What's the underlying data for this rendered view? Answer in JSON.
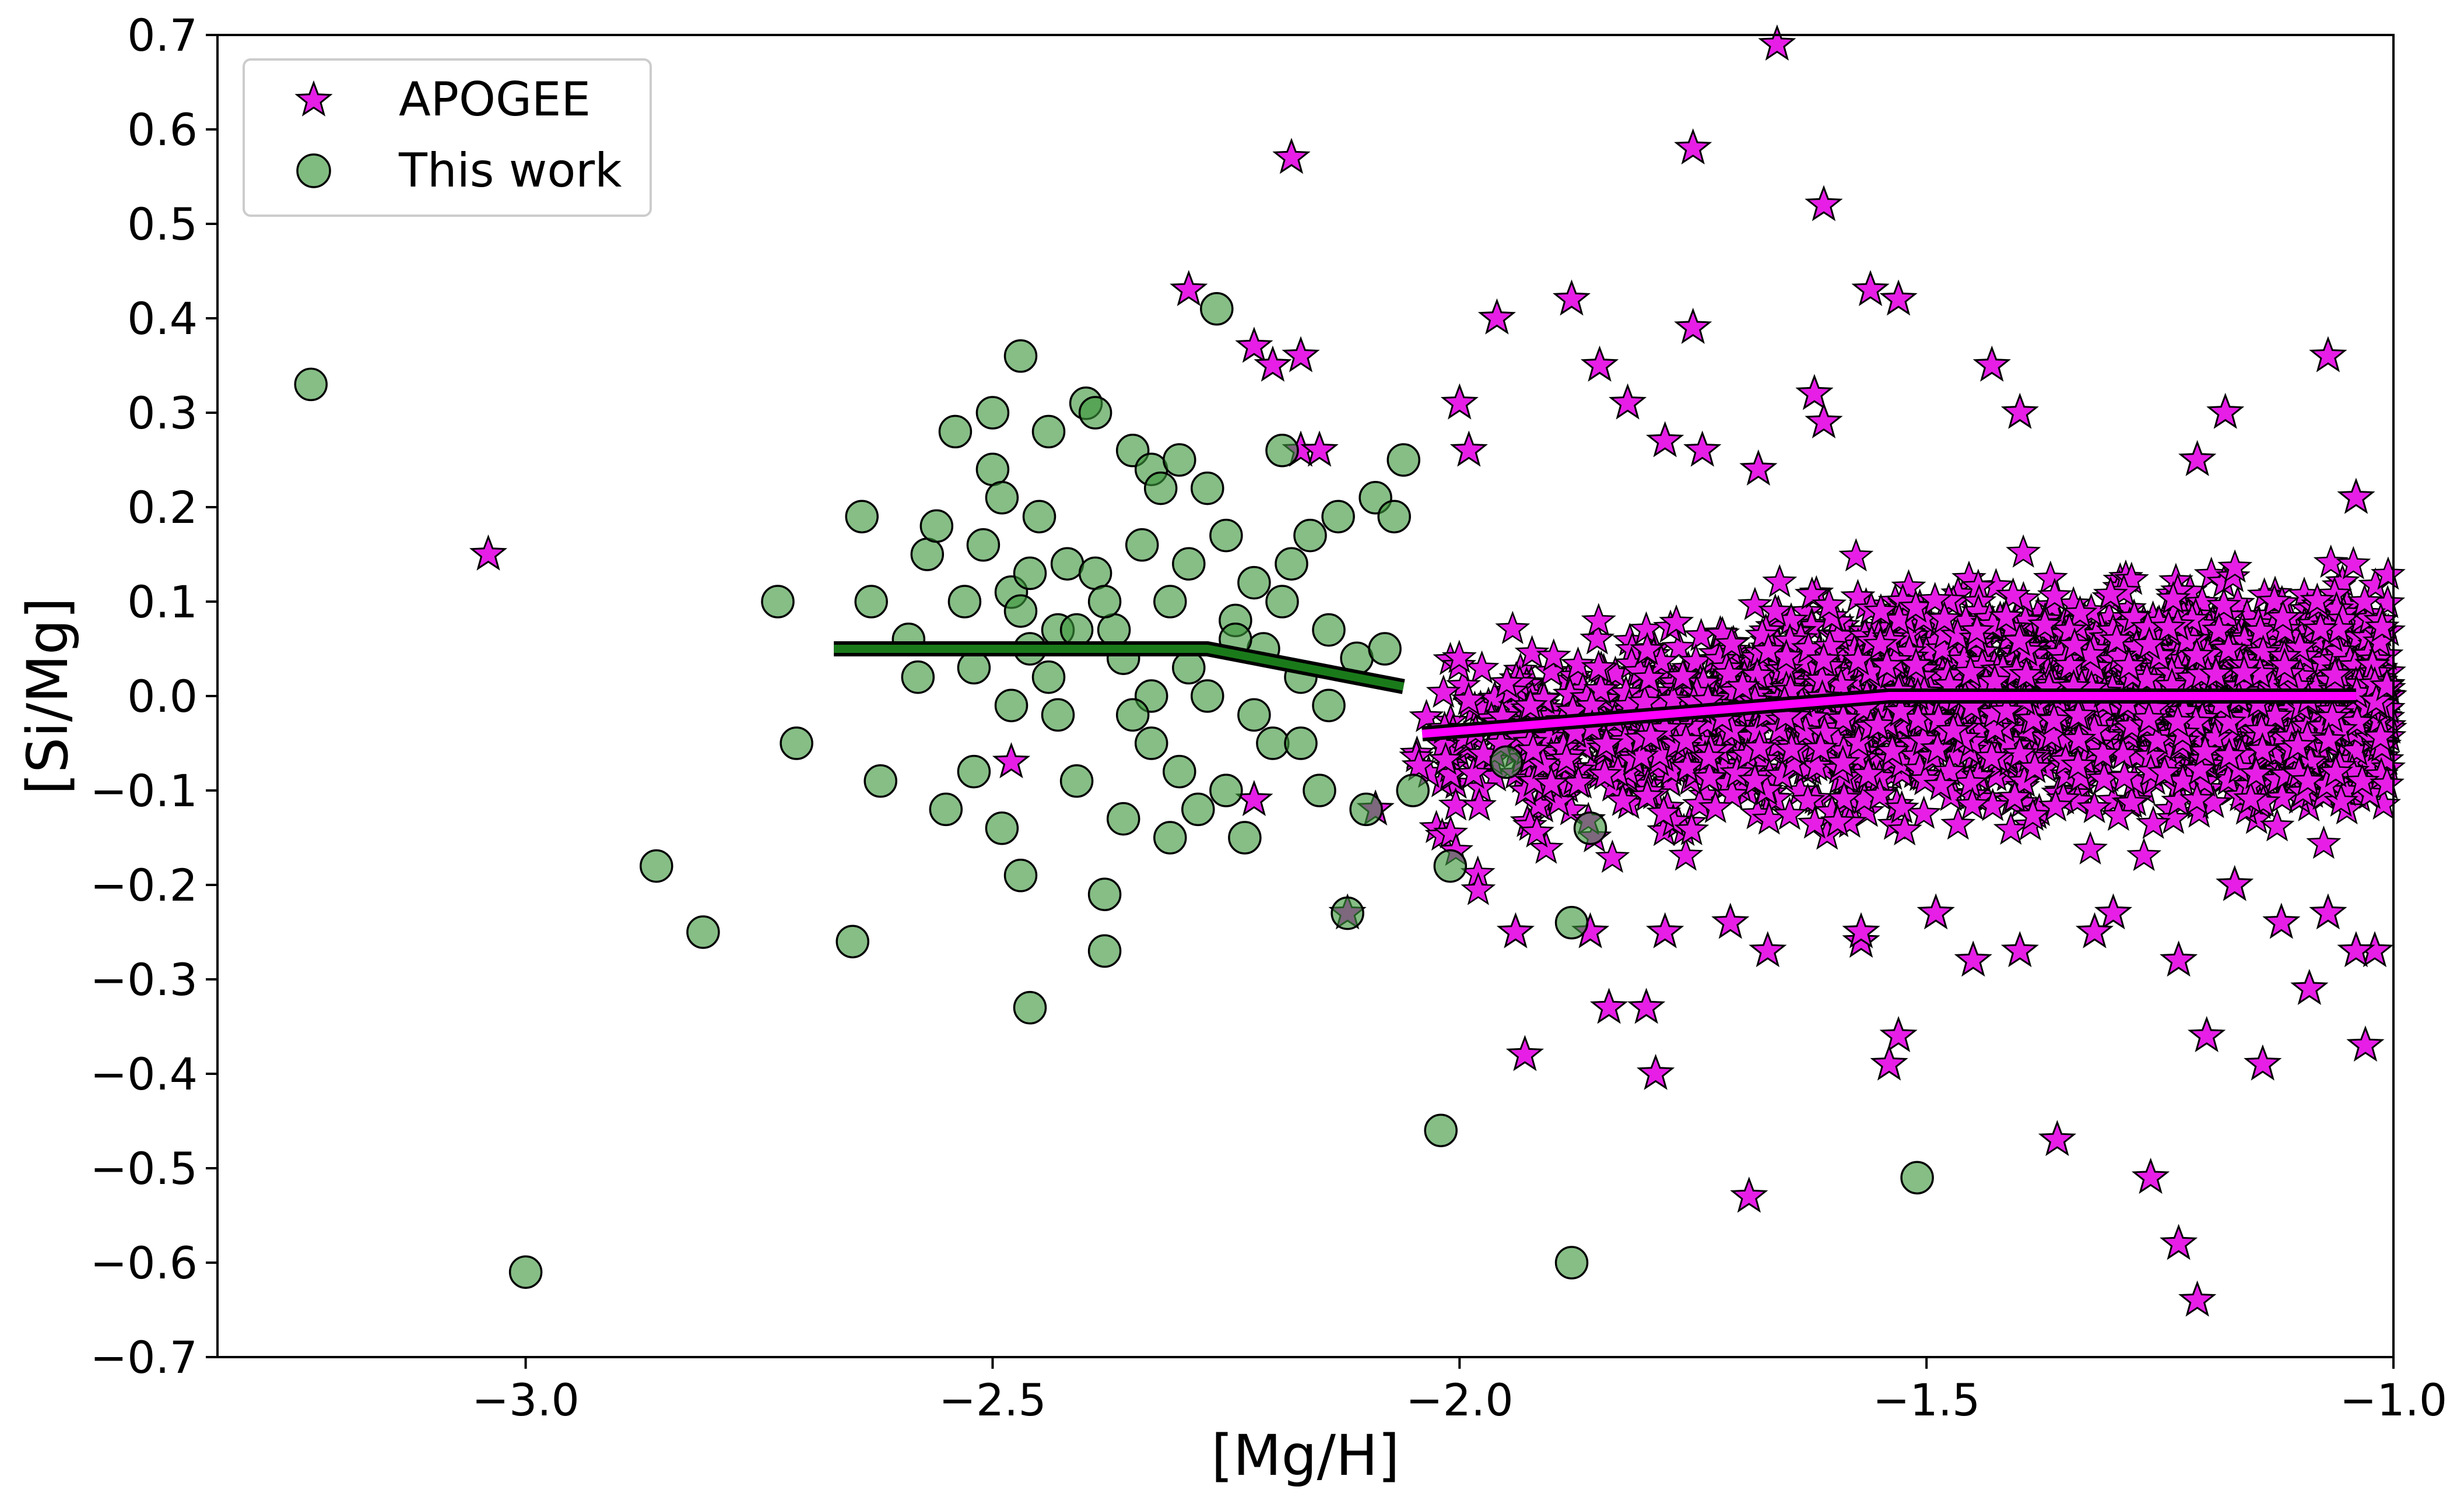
{
  "chart_data": {
    "type": "scatter",
    "xlabel": "[Mg/H]",
    "ylabel": "[Si/Mg]",
    "xlim": [
      -3.33,
      -1.0
    ],
    "ylim": [
      -0.7,
      0.7
    ],
    "xticks": [
      -3.0,
      -2.5,
      -2.0,
      -1.5,
      -1.0
    ],
    "xtick_labels": [
      "−3.0",
      "−2.5",
      "−2.0",
      "−1.5",
      "−1.0"
    ],
    "yticks": [
      0.7,
      0.6,
      0.5,
      0.4,
      0.3,
      0.2,
      0.1,
      0.0,
      -0.1,
      -0.2,
      -0.3,
      -0.4,
      -0.5,
      -0.6,
      -0.7
    ],
    "ytick_labels": [
      "0.7",
      "0.6",
      "0.5",
      "0.4",
      "0.3",
      "0.2",
      "0.1",
      "0.0",
      "−0.1",
      "−0.2",
      "−0.3",
      "−0.4",
      "−0.5",
      "−0.6",
      "−0.7"
    ],
    "grid": false,
    "legend": {
      "position": "top-left",
      "entries": [
        "APOGEE",
        "This work"
      ]
    },
    "colors": {
      "apogee": "#e61ee6",
      "this_work": "#3c963c",
      "this_work_line": "#1a7a1a",
      "apogee_line": "#ff00ff",
      "outline": "#000000"
    },
    "series": [
      {
        "name": "APOGEE",
        "marker": "star",
        "points": [
          [
            -3.04,
            0.15
          ],
          [
            -2.29,
            0.43
          ],
          [
            -2.18,
            0.57
          ],
          [
            -2.22,
            0.37
          ],
          [
            -2.2,
            0.35
          ],
          [
            -2.17,
            0.36
          ],
          [
            -2.17,
            0.26
          ],
          [
            -2.15,
            0.26
          ],
          [
            -2.48,
            -0.07
          ],
          [
            -2.22,
            -0.11
          ],
          [
            -2.12,
            -0.23
          ],
          [
            -2.09,
            -0.12
          ],
          [
            -1.66,
            0.69
          ],
          [
            -1.75,
            0.58
          ],
          [
            -1.61,
            0.52
          ],
          [
            -1.56,
            0.43
          ],
          [
            -1.53,
            0.42
          ],
          [
            -1.75,
            0.39
          ],
          [
            -1.96,
            0.4
          ],
          [
            -1.88,
            0.42
          ],
          [
            -2.0,
            0.31
          ],
          [
            -1.99,
            0.26
          ],
          [
            -1.82,
            0.31
          ],
          [
            -1.85,
            0.35
          ],
          [
            -1.62,
            0.32
          ],
          [
            -1.61,
            0.29
          ],
          [
            -1.43,
            0.35
          ],
          [
            -1.4,
            0.3
          ],
          [
            -1.07,
            0.36
          ],
          [
            -1.18,
            0.3
          ],
          [
            -1.21,
            0.25
          ],
          [
            -1.04,
            0.21
          ],
          [
            -1.78,
            0.27
          ],
          [
            -1.74,
            0.26
          ],
          [
            -1.68,
            0.24
          ],
          [
            -1.93,
            -0.38
          ],
          [
            -1.84,
            -0.33
          ],
          [
            -1.8,
            -0.33
          ],
          [
            -1.79,
            -0.4
          ],
          [
            -1.69,
            -0.53
          ],
          [
            -1.53,
            -0.36
          ],
          [
            -1.54,
            -0.39
          ],
          [
            -1.36,
            -0.47
          ],
          [
            -1.26,
            -0.51
          ],
          [
            -1.23,
            -0.58
          ],
          [
            -1.21,
            -0.64
          ],
          [
            -1.2,
            -0.36
          ],
          [
            -1.14,
            -0.39
          ],
          [
            -1.09,
            -0.31
          ],
          [
            -1.03,
            -0.37
          ],
          [
            -1.02,
            -0.27
          ],
          [
            -1.0,
            -0.34
          ],
          [
            -1.45,
            -0.28
          ],
          [
            -1.4,
            -0.27
          ],
          [
            -1.57,
            -0.26
          ],
          [
            -1.57,
            -0.25
          ],
          [
            -1.67,
            -0.27
          ],
          [
            -1.71,
            -0.24
          ],
          [
            -1.94,
            -0.25
          ],
          [
            -1.86,
            -0.25
          ],
          [
            -1.78,
            -0.25
          ],
          [
            -1.49,
            -0.23
          ],
          [
            -1.3,
            -0.23
          ],
          [
            -1.32,
            -0.25
          ],
          [
            -1.23,
            -0.28
          ],
          [
            -1.17,
            -0.2
          ],
          [
            -1.12,
            -0.24
          ],
          [
            -1.07,
            -0.23
          ],
          [
            -1.04,
            -0.27
          ]
        ]
      },
      {
        "name": "This work",
        "marker": "circle",
        "points": [
          [
            -3.23,
            0.33
          ],
          [
            -3.0,
            -0.61
          ],
          [
            -2.86,
            -0.18
          ],
          [
            -2.81,
            -0.25
          ],
          [
            -2.73,
            0.1
          ],
          [
            -2.71,
            -0.05
          ],
          [
            -2.65,
            -0.26
          ],
          [
            -2.64,
            0.19
          ],
          [
            -2.63,
            0.1
          ],
          [
            -2.62,
            -0.09
          ],
          [
            -2.59,
            0.06
          ],
          [
            -2.58,
            0.02
          ],
          [
            -2.57,
            0.15
          ],
          [
            -2.56,
            0.18
          ],
          [
            -2.55,
            -0.12
          ],
          [
            -2.54,
            0.28
          ],
          [
            -2.53,
            0.1
          ],
          [
            -2.52,
            -0.08
          ],
          [
            -2.51,
            0.16
          ],
          [
            -2.5,
            0.3
          ],
          [
            -2.5,
            0.24
          ],
          [
            -2.49,
            0.21
          ],
          [
            -2.49,
            -0.14
          ],
          [
            -2.48,
            0.11
          ],
          [
            -2.48,
            -0.01
          ],
          [
            -2.47,
            0.36
          ],
          [
            -2.47,
            -0.19
          ],
          [
            -2.46,
            0.13
          ],
          [
            -2.46,
            -0.33
          ],
          [
            -2.45,
            0.19
          ],
          [
            -2.44,
            0.28
          ],
          [
            -2.43,
            0.07
          ],
          [
            -2.42,
            0.14
          ],
          [
            -2.41,
            -0.09
          ],
          [
            -2.4,
            0.31
          ],
          [
            -2.39,
            0.3
          ],
          [
            -2.39,
            0.13
          ],
          [
            -2.38,
            -0.27
          ],
          [
            -2.38,
            -0.21
          ],
          [
            -2.37,
            0.07
          ],
          [
            -2.36,
            -0.13
          ],
          [
            -2.35,
            0.26
          ],
          [
            -2.34,
            0.16
          ],
          [
            -2.33,
            0.24
          ],
          [
            -2.33,
            -0.05
          ],
          [
            -2.32,
            0.22
          ],
          [
            -2.31,
            -0.15
          ],
          [
            -2.3,
            0.25
          ],
          [
            -2.29,
            0.14
          ],
          [
            -2.29,
            0.03
          ],
          [
            -2.28,
            -0.12
          ],
          [
            -2.27,
            0.22
          ],
          [
            -2.26,
            0.41
          ],
          [
            -2.25,
            0.17
          ],
          [
            -2.25,
            -0.1
          ],
          [
            -2.24,
            0.08
          ],
          [
            -2.23,
            -0.15
          ],
          [
            -2.22,
            0.12
          ],
          [
            -2.21,
            0.05
          ],
          [
            -2.2,
            -0.05
          ],
          [
            -2.19,
            0.26
          ],
          [
            -2.18,
            0.14
          ],
          [
            -2.17,
            0.02
          ],
          [
            -2.16,
            0.17
          ],
          [
            -2.15,
            -0.1
          ],
          [
            -2.14,
            0.07
          ],
          [
            -2.13,
            0.19
          ],
          [
            -2.12,
            -0.23
          ],
          [
            -2.11,
            0.04
          ],
          [
            -2.1,
            -0.12
          ],
          [
            -2.09,
            0.21
          ],
          [
            -2.08,
            0.05
          ],
          [
            -2.07,
            0.19
          ],
          [
            -2.06,
            0.25
          ],
          [
            -2.05,
            -0.1
          ],
          [
            -2.02,
            -0.46
          ],
          [
            -2.01,
            -0.18
          ],
          [
            -1.95,
            -0.07
          ],
          [
            -1.88,
            -0.6
          ],
          [
            -1.88,
            -0.24
          ],
          [
            -1.86,
            -0.14
          ],
          [
            -1.51,
            -0.51
          ],
          [
            -2.47,
            0.09
          ],
          [
            -2.44,
            0.02
          ],
          [
            -2.41,
            0.07
          ],
          [
            -2.36,
            0.04
          ],
          [
            -2.31,
            0.1
          ],
          [
            -2.27,
            0.0
          ],
          [
            -2.22,
            -0.02
          ],
          [
            -2.19,
            0.1
          ],
          [
            -2.43,
            -0.02
          ],
          [
            -2.38,
            0.1
          ],
          [
            -2.33,
            0.0
          ],
          [
            -2.3,
            -0.08
          ],
          [
            -2.24,
            0.06
          ],
          [
            -2.17,
            -0.05
          ],
          [
            -2.14,
            -0.01
          ],
          [
            -2.52,
            0.03
          ],
          [
            -2.46,
            0.05
          ],
          [
            -2.35,
            -0.02
          ]
        ]
      }
    ],
    "trend_lines": [
      {
        "series": "This work",
        "points": [
          [
            -2.67,
            0.05
          ],
          [
            -2.27,
            0.05
          ],
          [
            -2.06,
            0.01
          ]
        ]
      },
      {
        "series": "APOGEE",
        "points": [
          [
            -2.04,
            -0.04
          ],
          [
            -1.54,
            0.0
          ],
          [
            -1.04,
            0.0
          ]
        ]
      }
    ]
  }
}
